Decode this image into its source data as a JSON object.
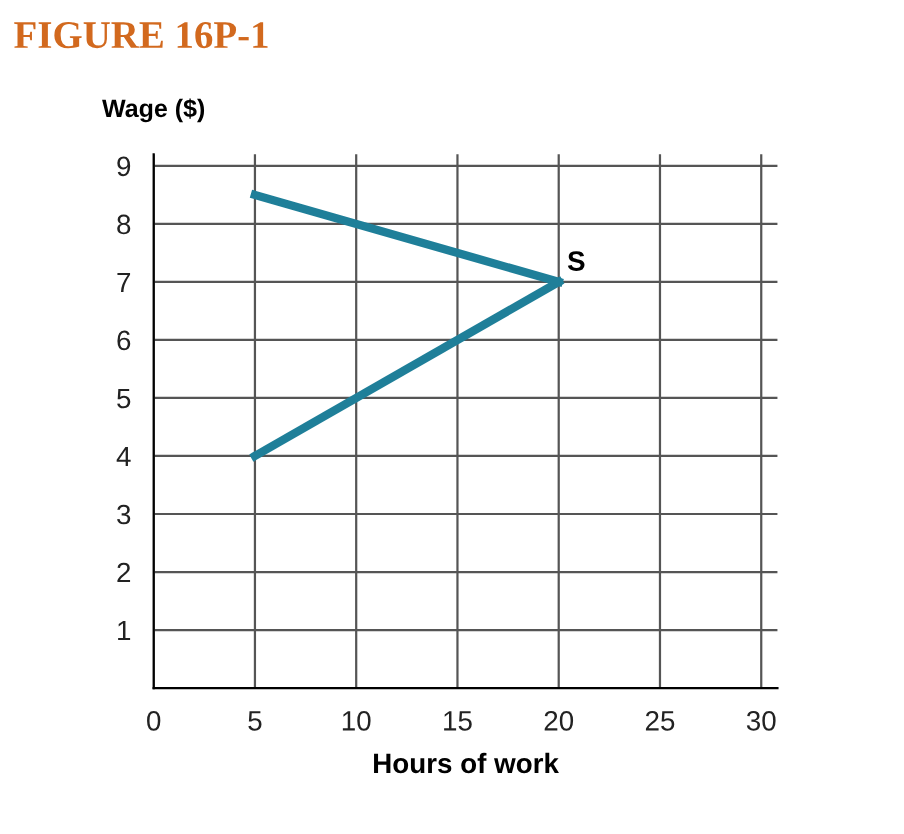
{
  "chart_data": {
    "type": "line",
    "title": "FIGURE 16P-1",
    "xlabel": "Hours of work",
    "ylabel": "Wage ($)",
    "x": [
      5,
      20
    ],
    "series": [
      {
        "color": "#1f7f99",
        "values": [
          4,
          7
        ]
      },
      {
        "color": "#1f7f99",
        "values": [
          8.5,
          7
        ]
      }
    ],
    "annotations": [
      {
        "text": "S",
        "x": 20,
        "y": 7
      }
    ],
    "xlim": [
      0,
      30.8
    ],
    "ylim": [
      0,
      9.2
    ],
    "xticks": [
      0,
      5,
      10,
      15,
      20,
      25,
      30
    ],
    "yticks": [
      1,
      2,
      3,
      4,
      5,
      6,
      7,
      8,
      9
    ],
    "grid": true,
    "legend": false,
    "marker": "none",
    "line_style": "solid"
  }
}
